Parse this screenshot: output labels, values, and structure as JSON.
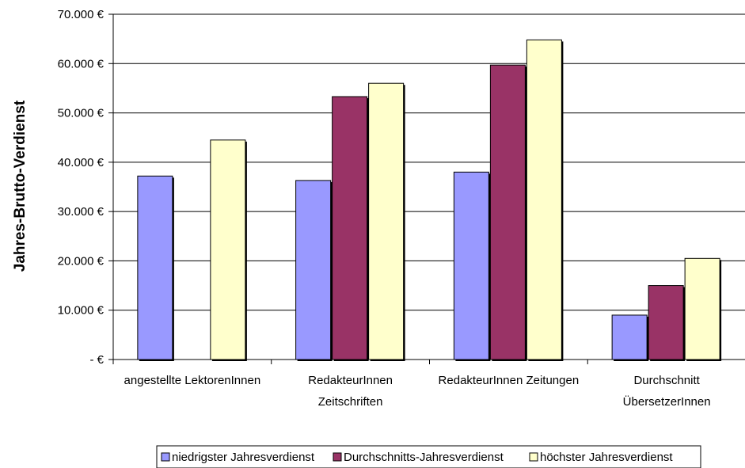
{
  "chart_data": {
    "type": "bar",
    "ylabel": "Jahres-Brutto-Verdienst",
    "xlabel": "",
    "title": "",
    "categories": [
      [
        "angestellte LektorenInnen"
      ],
      [
        "RedakteurInnen",
        "Zeitschriften"
      ],
      [
        "RedakteurInnen Zeitungen"
      ],
      [
        "Durchschnitt",
        "ÜbersetzerInnen"
      ]
    ],
    "series": [
      {
        "name": "niedrigster Jahresverdienst",
        "color": "#9999ff",
        "values": [
          37200,
          36300,
          38000,
          9000
        ]
      },
      {
        "name": "Durchschnitts-Jahresverdienst",
        "color": "#993366",
        "values": [
          null,
          53300,
          59700,
          15000
        ]
      },
      {
        "name": "höchster Jahresverdienst",
        "color": "#ffffcc",
        "values": [
          44500,
          56000,
          64800,
          20500
        ]
      }
    ],
    "ylim": [
      0,
      70000
    ],
    "yticks": [
      {
        "value": 70000,
        "label": "70.000 €"
      },
      {
        "value": 60000,
        "label": "60.000 €"
      },
      {
        "value": 50000,
        "label": "50.000 €"
      },
      {
        "value": 40000,
        "label": "40.000 €"
      },
      {
        "value": 30000,
        "label": "30.000 €"
      },
      {
        "value": 20000,
        "label": "20.000 €"
      },
      {
        "value": 10000,
        "label": "10.000 €"
      },
      {
        "value": 0,
        "label": "-     €"
      }
    ],
    "grid": true,
    "legend_position": "bottom"
  }
}
